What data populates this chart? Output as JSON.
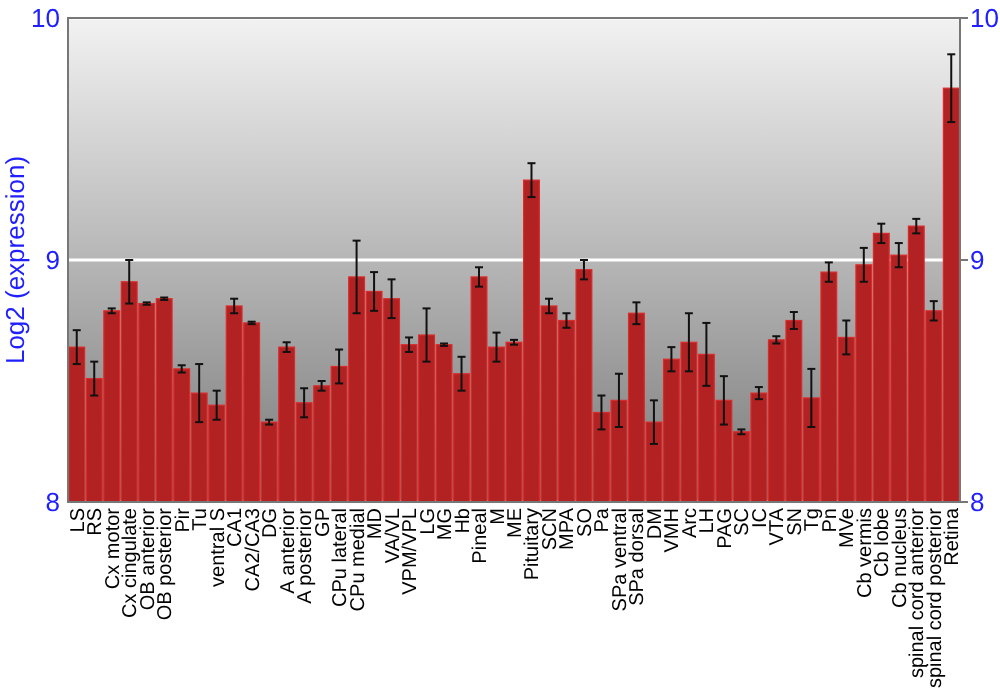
{
  "chart_data": {
    "type": "bar",
    "ylabel": "Log2 (expression)",
    "categories": [
      "LS",
      "RS",
      "Cx motor",
      "Cx cingulate",
      "OB anterior",
      "OB posterior",
      "Pir",
      "Tu",
      "ventral S",
      "CA1",
      "CA2/CA3",
      "DG",
      "A anterior",
      "A posterior",
      "GP",
      "CPu lateral",
      "CPu medial",
      "MD",
      "VA/VL",
      "VPM/VPL",
      "LG",
      "MG",
      "Hb",
      "Pineal",
      "M",
      "ME",
      "Pituitary",
      "SCN",
      "MPA",
      "SO",
      "Pa",
      "SPa ventral",
      "SPa dorsal",
      "DM",
      "VMH",
      "Arc",
      "LH",
      "PAG",
      "SC",
      "IC",
      "VTA",
      "SN",
      "Tg",
      "Pn",
      "MVe",
      "Cb vermis",
      "Cb lobe",
      "Cb nucleus",
      "spinal cord anterior",
      "spinal cord posterior",
      "Retina"
    ],
    "values": [
      8.64,
      8.51,
      8.79,
      8.91,
      8.82,
      8.84,
      8.55,
      8.45,
      8.4,
      8.81,
      8.74,
      8.33,
      8.64,
      8.41,
      8.48,
      8.56,
      8.93,
      8.87,
      8.84,
      8.65,
      8.69,
      8.65,
      8.53,
      8.93,
      8.64,
      8.66,
      9.33,
      8.81,
      8.75,
      8.96,
      8.37,
      8.42,
      8.78,
      8.33,
      8.59,
      8.66,
      8.61,
      8.42,
      8.29,
      8.45,
      8.67,
      8.75,
      8.43,
      8.95,
      8.68,
      8.98,
      9.11,
      9.02,
      9.14,
      8.79,
      9.71
    ],
    "errors": [
      0.07,
      0.07,
      0.01,
      0.09,
      0.005,
      0.005,
      0.015,
      0.12,
      0.06,
      0.03,
      0.005,
      0.01,
      0.02,
      0.06,
      0.02,
      0.07,
      0.15,
      0.08,
      0.08,
      0.03,
      0.11,
      0.005,
      0.07,
      0.04,
      0.06,
      0.01,
      0.07,
      0.03,
      0.03,
      0.04,
      0.07,
      0.11,
      0.045,
      0.09,
      0.05,
      0.12,
      0.13,
      0.1,
      0.01,
      0.025,
      0.015,
      0.035,
      0.12,
      0.04,
      0.07,
      0.07,
      0.04,
      0.05,
      0.03,
      0.04,
      0.14
    ],
    "color": "#b22222",
    "ylim": [
      8,
      10
    ],
    "yticks": [
      8,
      9,
      10
    ],
    "y2lim": [
      8,
      10
    ],
    "y2ticks": [
      8,
      9,
      10
    ],
    "grid": "y"
  }
}
